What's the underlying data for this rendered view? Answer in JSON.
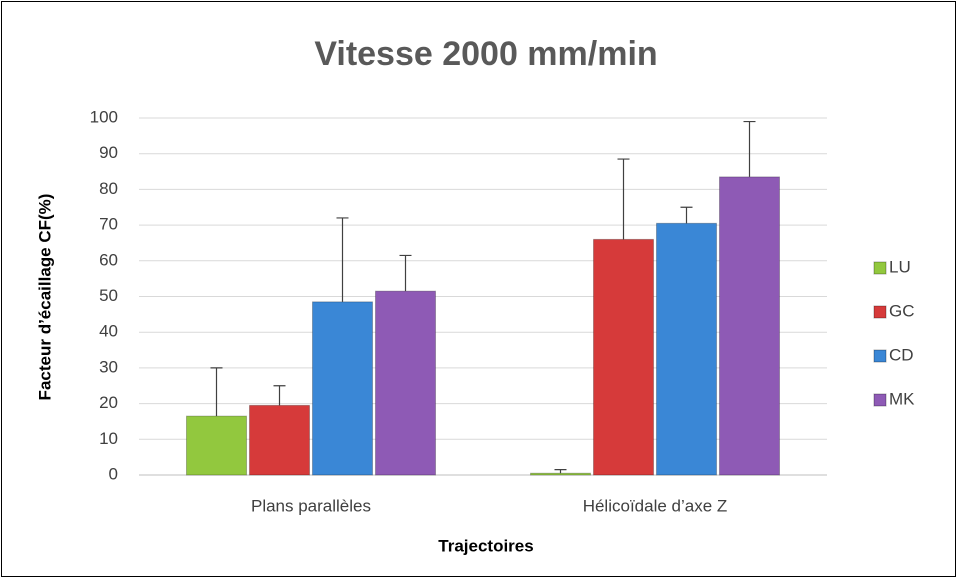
{
  "chart_data": {
    "type": "bar",
    "title": "Vitesse 2000 mm/min",
    "x_label": "Trajectoires",
    "y_label": "Facteur d’écaillage  CF(%)",
    "categories": [
      "Plans parallèles",
      "Hélicoïdale d’axe Z"
    ],
    "series": [
      {
        "name": "LU",
        "color": "#92c83e",
        "values": [
          16.5,
          0.5
        ],
        "errors": [
          13.5,
          1
        ]
      },
      {
        "name": "GC",
        "color": "#d63a3a",
        "values": [
          19.5,
          66
        ],
        "errors": [
          5.5,
          22.5
        ]
      },
      {
        "name": "CD",
        "color": "#3a87d6",
        "values": [
          48.5,
          70.5
        ],
        "errors": [
          23.5,
          4.5
        ]
      },
      {
        "name": "MK",
        "color": "#8e5ab5",
        "values": [
          51.5,
          83.5
        ],
        "errors": [
          10,
          15.5
        ]
      }
    ],
    "ylim": [
      0,
      100
    ],
    "yticks": [
      0,
      10,
      20,
      30,
      40,
      50,
      60,
      70,
      80,
      90,
      100
    ],
    "grid": true,
    "legend": "right"
  }
}
